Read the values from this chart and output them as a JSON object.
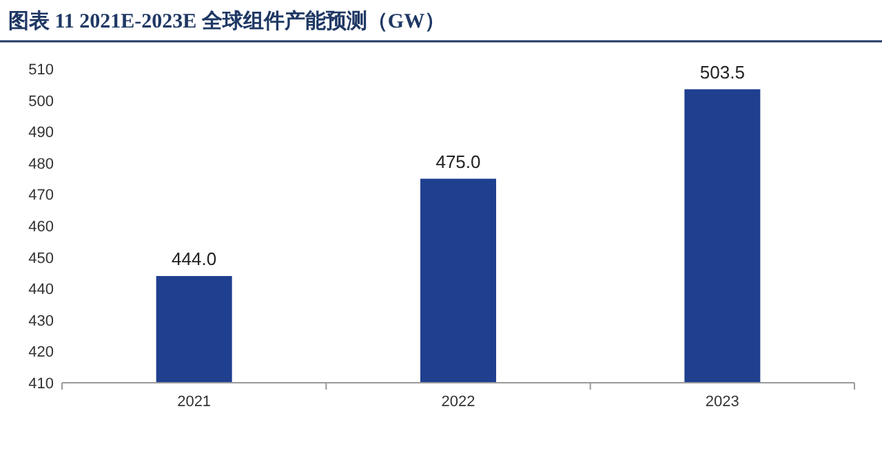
{
  "chart_data": {
    "type": "bar",
    "title": "图表 11   2021E-2023E 全球组件产能预测（GW）",
    "categories": [
      "2021",
      "2022",
      "2023"
    ],
    "values": [
      444.0,
      475.0,
      503.5
    ],
    "value_labels": [
      "444.0",
      "475.0",
      "503.5"
    ],
    "color": "#1f3f8f",
    "ylim": [
      410,
      510
    ],
    "yticks": [
      410,
      420,
      430,
      440,
      450,
      460,
      470,
      480,
      490,
      500,
      510
    ]
  }
}
